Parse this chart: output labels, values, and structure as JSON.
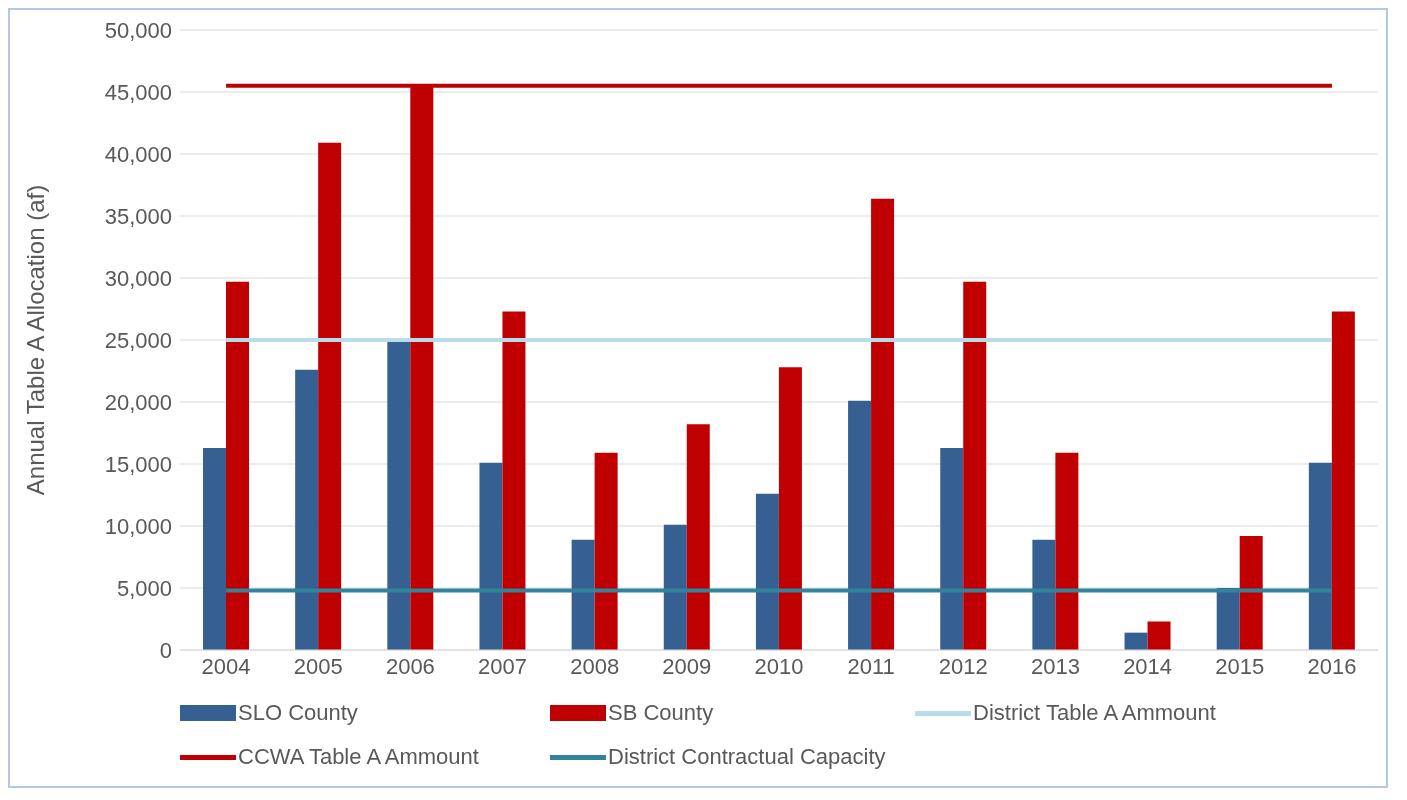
{
  "chart_data": {
    "type": "bar",
    "ylabel": "Annual Table A Allocation (af)",
    "categories": [
      "2004",
      "2005",
      "2006",
      "2007",
      "2008",
      "2009",
      "2010",
      "2011",
      "2012",
      "2013",
      "2014",
      "2015",
      "2016"
    ],
    "series": [
      {
        "name": "SLO County",
        "color": "#376092",
        "values": [
          16300,
          22600,
          24900,
          15100,
          8900,
          10100,
          12600,
          20100,
          16300,
          8900,
          1400,
          5000,
          15100
        ]
      },
      {
        "name": "SB County",
        "color": "#c00000",
        "values": [
          29700,
          40900,
          45600,
          27300,
          15900,
          18200,
          22800,
          36400,
          29700,
          15900,
          2300,
          9200,
          27300
        ]
      },
      {
        "name": "District Table A Ammount",
        "type": "line",
        "color": "#b7dde8",
        "values": [
          25000,
          25000,
          25000,
          25000,
          25000,
          25000,
          25000,
          25000,
          25000,
          25000,
          25000,
          25000,
          25000
        ]
      },
      {
        "name": "CCWA Table A Ammount",
        "type": "line",
        "color": "#c00000",
        "values": [
          45500,
          45500,
          45500,
          45500,
          45500,
          45500,
          45500,
          45500,
          45500,
          45500,
          45500,
          45500,
          45500
        ]
      },
      {
        "name": "District Contractual Capacity",
        "type": "line",
        "color": "#31849b",
        "values": [
          4800,
          4800,
          4800,
          4800,
          4800,
          4800,
          4800,
          4800,
          4800,
          4800,
          4800,
          4800,
          4800
        ]
      }
    ],
    "ylim": [
      0,
      50000
    ],
    "yticks": [
      0,
      {
        "value": 5000,
        "label": "5,000"
      },
      {
        "value": 10000,
        "label": "10,000"
      },
      {
        "value": 15000,
        "label": "15,000"
      },
      {
        "value": 20000,
        "label": "20,000"
      },
      {
        "value": 25000,
        "label": "25,000"
      },
      {
        "value": 30000,
        "label": "30,000"
      },
      {
        "value": 35000,
        "label": "35,000"
      },
      {
        "value": 40000,
        "label": "40,000"
      },
      {
        "value": 45000,
        "label": "45,000"
      },
      {
        "value": 50000,
        "label": "50,000"
      }
    ],
    "grid": "y",
    "legend": "bottom"
  }
}
